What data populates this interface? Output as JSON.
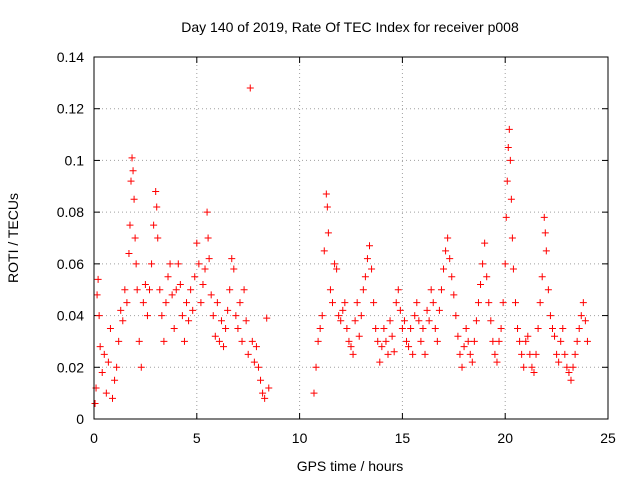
{
  "chart_data": {
    "type": "scatter",
    "title": "Day 140 of 2019, Rate Of TEC Index for receiver p008",
    "xlabel": "GPS time / hours",
    "ylabel": "ROTI / TECUs",
    "xlim": [
      0,
      25
    ],
    "ylim": [
      0,
      0.14
    ],
    "grid": true,
    "x_ticks": [
      0,
      5,
      10,
      15,
      20,
      25
    ],
    "x_tick_labels": [
      "0",
      "5",
      "10",
      "15",
      "20",
      "25"
    ],
    "y_ticks": [
      0,
      0.02,
      0.04,
      0.06,
      0.08,
      0.1,
      0.12,
      0.14
    ],
    "y_tick_labels": [
      "0",
      "0.02",
      "0.04",
      "0.06",
      "0.08",
      "0.1",
      "0.12",
      "0.14"
    ],
    "marker": "+",
    "color": "#ff0000",
    "series": [
      {
        "name": "ROTI",
        "points": [
          [
            0.05,
            0.006
          ],
          [
            0.1,
            0.012
          ],
          [
            0.15,
            0.048
          ],
          [
            0.2,
            0.054
          ],
          [
            0.25,
            0.04
          ],
          [
            0.3,
            0.028
          ],
          [
            0.4,
            0.018
          ],
          [
            0.5,
            0.025
          ],
          [
            0.6,
            0.01
          ],
          [
            0.7,
            0.022
          ],
          [
            0.8,
            0.035
          ],
          [
            0.9,
            0.008
          ],
          [
            1.0,
            0.015
          ],
          [
            1.1,
            0.02
          ],
          [
            1.2,
            0.03
          ],
          [
            1.3,
            0.042
          ],
          [
            1.4,
            0.038
          ],
          [
            1.5,
            0.05
          ],
          [
            1.6,
            0.045
          ],
          [
            1.7,
            0.064
          ],
          [
            1.75,
            0.075
          ],
          [
            1.8,
            0.092
          ],
          [
            1.85,
            0.101
          ],
          [
            1.9,
            0.096
          ],
          [
            1.95,
            0.085
          ],
          [
            2.0,
            0.07
          ],
          [
            2.05,
            0.06
          ],
          [
            2.1,
            0.05
          ],
          [
            2.2,
            0.03
          ],
          [
            2.3,
            0.02
          ],
          [
            2.4,
            0.045
          ],
          [
            2.5,
            0.052
          ],
          [
            2.6,
            0.04
          ],
          [
            2.7,
            0.05
          ],
          [
            2.8,
            0.06
          ],
          [
            2.9,
            0.075
          ],
          [
            3.0,
            0.088
          ],
          [
            3.05,
            0.082
          ],
          [
            3.1,
            0.07
          ],
          [
            3.2,
            0.05
          ],
          [
            3.3,
            0.04
          ],
          [
            3.4,
            0.03
          ],
          [
            3.5,
            0.045
          ],
          [
            3.6,
            0.055
          ],
          [
            3.7,
            0.06
          ],
          [
            3.8,
            0.048
          ],
          [
            3.9,
            0.035
          ],
          [
            4.0,
            0.05
          ],
          [
            4.1,
            0.06
          ],
          [
            4.2,
            0.052
          ],
          [
            4.3,
            0.04
          ],
          [
            4.4,
            0.03
          ],
          [
            4.5,
            0.045
          ],
          [
            4.6,
            0.038
          ],
          [
            4.7,
            0.05
          ],
          [
            4.8,
            0.042
          ],
          [
            4.9,
            0.055
          ],
          [
            5.0,
            0.068
          ],
          [
            5.1,
            0.06
          ],
          [
            5.2,
            0.045
          ],
          [
            5.3,
            0.052
          ],
          [
            5.4,
            0.058
          ],
          [
            5.5,
            0.08
          ],
          [
            5.55,
            0.07
          ],
          [
            5.6,
            0.062
          ],
          [
            5.7,
            0.048
          ],
          [
            5.8,
            0.04
          ],
          [
            5.9,
            0.032
          ],
          [
            6.0,
            0.045
          ],
          [
            6.1,
            0.03
          ],
          [
            6.2,
            0.038
          ],
          [
            6.3,
            0.028
          ],
          [
            6.4,
            0.035
          ],
          [
            6.5,
            0.042
          ],
          [
            6.6,
            0.05
          ],
          [
            6.7,
            0.062
          ],
          [
            6.8,
            0.058
          ],
          [
            6.9,
            0.04
          ],
          [
            7.0,
            0.035
          ],
          [
            7.1,
            0.045
          ],
          [
            7.2,
            0.03
          ],
          [
            7.3,
            0.05
          ],
          [
            7.4,
            0.038
          ],
          [
            7.5,
            0.025
          ],
          [
            7.6,
            0.128
          ],
          [
            7.7,
            0.03
          ],
          [
            7.8,
            0.022
          ],
          [
            7.9,
            0.028
          ],
          [
            8.0,
            0.02
          ],
          [
            8.1,
            0.015
          ],
          [
            8.2,
            0.01
          ],
          [
            8.3,
            0.008
          ],
          [
            8.4,
            0.039
          ],
          [
            8.5,
            0.012
          ],
          [
            10.7,
            0.01
          ],
          [
            10.8,
            0.02
          ],
          [
            10.9,
            0.03
          ],
          [
            11.0,
            0.035
          ],
          [
            11.1,
            0.04
          ],
          [
            11.2,
            0.065
          ],
          [
            11.3,
            0.087
          ],
          [
            11.35,
            0.082
          ],
          [
            11.4,
            0.072
          ],
          [
            11.5,
            0.05
          ],
          [
            11.6,
            0.045
          ],
          [
            11.7,
            0.06
          ],
          [
            11.8,
            0.058
          ],
          [
            11.9,
            0.04
          ],
          [
            12.0,
            0.038
          ],
          [
            12.1,
            0.042
          ],
          [
            12.2,
            0.045
          ],
          [
            12.3,
            0.035
          ],
          [
            12.4,
            0.03
          ],
          [
            12.5,
            0.028
          ],
          [
            12.6,
            0.025
          ],
          [
            12.7,
            0.038
          ],
          [
            12.8,
            0.045
          ],
          [
            12.9,
            0.032
          ],
          [
            13.0,
            0.04
          ],
          [
            13.1,
            0.05
          ],
          [
            13.2,
            0.055
          ],
          [
            13.3,
            0.062
          ],
          [
            13.4,
            0.067
          ],
          [
            13.5,
            0.058
          ],
          [
            13.6,
            0.045
          ],
          [
            13.7,
            0.035
          ],
          [
            13.8,
            0.03
          ],
          [
            13.9,
            0.022
          ],
          [
            14.0,
            0.028
          ],
          [
            14.1,
            0.035
          ],
          [
            14.2,
            0.03
          ],
          [
            14.3,
            0.025
          ],
          [
            14.4,
            0.038
          ],
          [
            14.5,
            0.032
          ],
          [
            14.6,
            0.026
          ],
          [
            14.7,
            0.045
          ],
          [
            14.8,
            0.05
          ],
          [
            14.9,
            0.042
          ],
          [
            15.0,
            0.035
          ],
          [
            15.1,
            0.038
          ],
          [
            15.2,
            0.03
          ],
          [
            15.3,
            0.028
          ],
          [
            15.4,
            0.035
          ],
          [
            15.5,
            0.025
          ],
          [
            15.6,
            0.04
          ],
          [
            15.7,
            0.045
          ],
          [
            15.8,
            0.038
          ],
          [
            15.9,
            0.03
          ],
          [
            16.0,
            0.035
          ],
          [
            16.1,
            0.025
          ],
          [
            16.2,
            0.042
          ],
          [
            16.3,
            0.038
          ],
          [
            16.4,
            0.05
          ],
          [
            16.5,
            0.045
          ],
          [
            16.6,
            0.035
          ],
          [
            16.7,
            0.03
          ],
          [
            16.8,
            0.042
          ],
          [
            16.9,
            0.05
          ],
          [
            17.0,
            0.058
          ],
          [
            17.1,
            0.065
          ],
          [
            17.2,
            0.07
          ],
          [
            17.3,
            0.062
          ],
          [
            17.4,
            0.055
          ],
          [
            17.5,
            0.048
          ],
          [
            17.6,
            0.04
          ],
          [
            17.7,
            0.032
          ],
          [
            17.8,
            0.025
          ],
          [
            17.9,
            0.02
          ],
          [
            18.0,
            0.028
          ],
          [
            18.1,
            0.035
          ],
          [
            18.2,
            0.03
          ],
          [
            18.3,
            0.025
          ],
          [
            18.4,
            0.022
          ],
          [
            18.5,
            0.03
          ],
          [
            18.6,
            0.038
          ],
          [
            18.7,
            0.045
          ],
          [
            18.8,
            0.052
          ],
          [
            18.9,
            0.06
          ],
          [
            19.0,
            0.068
          ],
          [
            19.1,
            0.055
          ],
          [
            19.2,
            0.045
          ],
          [
            19.3,
            0.038
          ],
          [
            19.4,
            0.03
          ],
          [
            19.5,
            0.025
          ],
          [
            19.6,
            0.022
          ],
          [
            19.7,
            0.03
          ],
          [
            19.8,
            0.035
          ],
          [
            19.9,
            0.045
          ],
          [
            20.0,
            0.06
          ],
          [
            20.05,
            0.078
          ],
          [
            20.1,
            0.092
          ],
          [
            20.15,
            0.105
          ],
          [
            20.2,
            0.112
          ],
          [
            20.25,
            0.1
          ],
          [
            20.3,
            0.085
          ],
          [
            20.35,
            0.07
          ],
          [
            20.4,
            0.058
          ],
          [
            20.5,
            0.045
          ],
          [
            20.6,
            0.035
          ],
          [
            20.7,
            0.03
          ],
          [
            20.8,
            0.025
          ],
          [
            20.9,
            0.02
          ],
          [
            21.0,
            0.03
          ],
          [
            21.1,
            0.032
          ],
          [
            21.2,
            0.025
          ],
          [
            21.3,
            0.02
          ],
          [
            21.4,
            0.018
          ],
          [
            21.5,
            0.025
          ],
          [
            21.6,
            0.035
          ],
          [
            21.7,
            0.045
          ],
          [
            21.8,
            0.055
          ],
          [
            21.9,
            0.078
          ],
          [
            21.95,
            0.072
          ],
          [
            22.0,
            0.065
          ],
          [
            22.1,
            0.05
          ],
          [
            22.2,
            0.04
          ],
          [
            22.3,
            0.035
          ],
          [
            22.4,
            0.032
          ],
          [
            22.5,
            0.025
          ],
          [
            22.6,
            0.022
          ],
          [
            22.7,
            0.03
          ],
          [
            22.8,
            0.035
          ],
          [
            22.9,
            0.025
          ],
          [
            23.0,
            0.02
          ],
          [
            23.1,
            0.018
          ],
          [
            23.2,
            0.015
          ],
          [
            23.3,
            0.02
          ],
          [
            23.4,
            0.025
          ],
          [
            23.5,
            0.03
          ],
          [
            23.6,
            0.035
          ],
          [
            23.7,
            0.04
          ],
          [
            23.8,
            0.045
          ],
          [
            23.9,
            0.038
          ],
          [
            24.0,
            0.03
          ]
        ]
      }
    ]
  }
}
